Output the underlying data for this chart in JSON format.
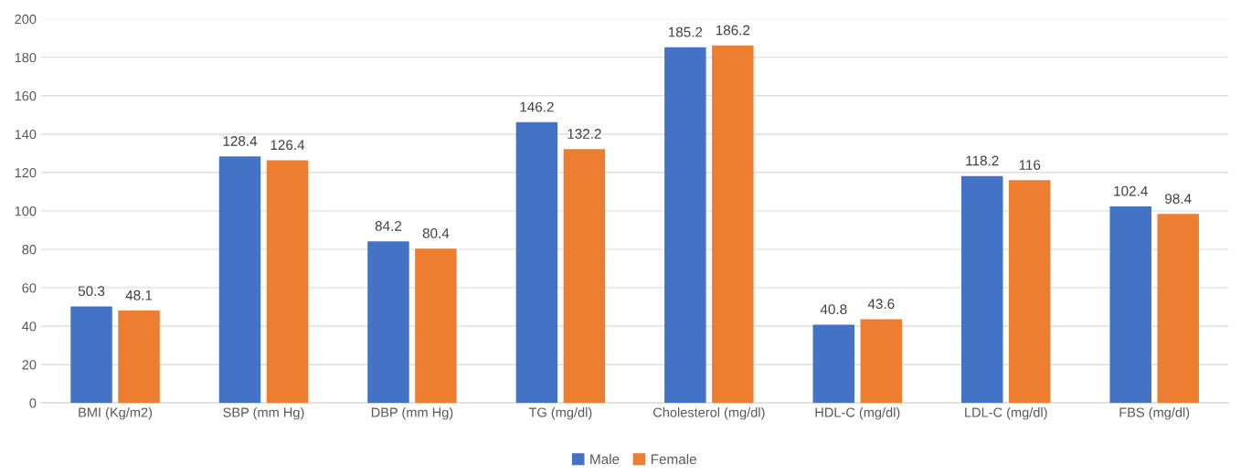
{
  "chart_data": {
    "type": "bar",
    "categories": [
      "BMI (Kg/m2)",
      "SBP (mm Hg)",
      "DBP (mm Hg)",
      "TG (mg/dl)",
      "Cholesterol (mg/dl)",
      "HDL-C (mg/dl)",
      "LDL-C (mg/dl)",
      "FBS (mg/dl)"
    ],
    "series": [
      {
        "name": "Male",
        "color": "#4472c4",
        "values": [
          50.3,
          128.4,
          84.2,
          146.2,
          185.2,
          40.8,
          118.2,
          102.4
        ]
      },
      {
        "name": "Female",
        "color": "#ed7d31",
        "values": [
          48.1,
          126.4,
          80.4,
          132.2,
          186.2,
          43.6,
          116,
          98.4
        ]
      }
    ],
    "ylim": [
      0,
      200
    ],
    "yticks": [
      0,
      20,
      40,
      60,
      80,
      100,
      120,
      140,
      160,
      180,
      200
    ],
    "grid": "y",
    "legend": "bottom",
    "data_labels": true
  }
}
